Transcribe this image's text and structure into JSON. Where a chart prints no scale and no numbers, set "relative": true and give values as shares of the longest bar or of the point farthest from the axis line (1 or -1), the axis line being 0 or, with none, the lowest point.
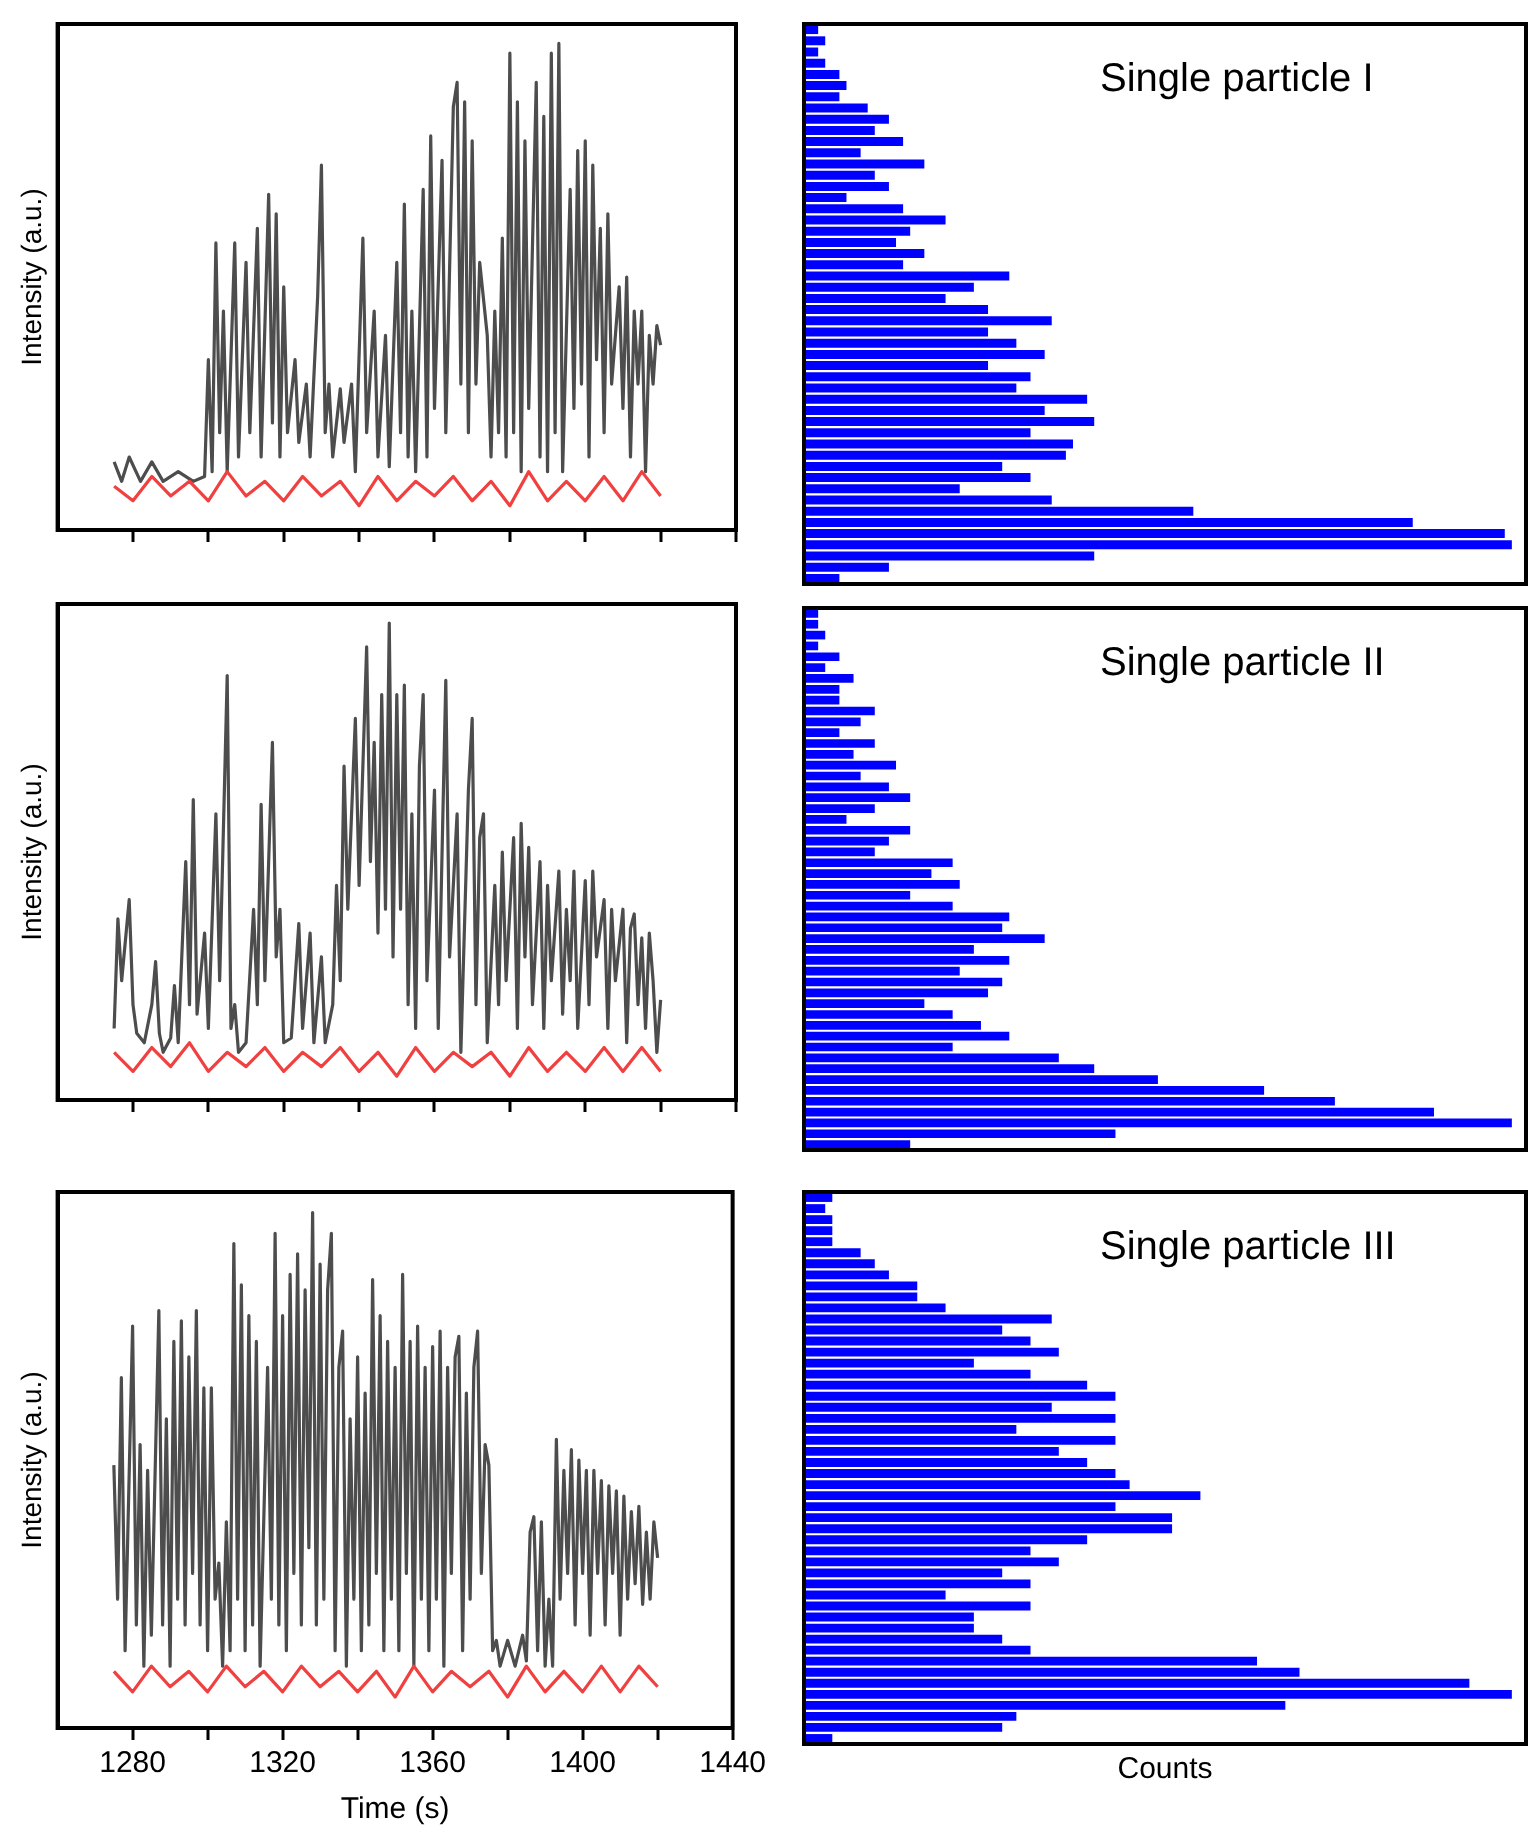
{
  "chart_data": [
    {
      "type": "line",
      "ylabel": "Intensity (a.u.)",
      "relative": true,
      "tick_labels": false,
      "xlim": [
        1260,
        1440
      ],
      "xticks": [
        {
          "value": 1280,
          "label": null
        },
        {
          "value": 1300,
          "label": null
        },
        {
          "value": 1320,
          "label": null
        },
        {
          "value": 1340,
          "label": null
        },
        {
          "value": 1360,
          "label": null
        },
        {
          "value": 1380,
          "label": null
        },
        {
          "value": 1400,
          "label": null
        },
        {
          "value": 1420,
          "label": null
        },
        {
          "value": 1440,
          "label": null
        }
      ],
      "series": [
        {
          "color": "#4d4d4d",
          "x": [
            1275,
            1277,
            1279,
            1282,
            1285,
            1288,
            1292,
            1296,
            1299,
            1300,
            1301,
            1302,
            1303,
            1304,
            1305,
            1307,
            1308,
            1310,
            1311,
            1313,
            1314,
            1316,
            1317,
            1318,
            1319,
            1320,
            1321,
            1323,
            1324,
            1326,
            1327,
            1329,
            1330,
            1331,
            1332,
            1333,
            1335,
            1336,
            1338,
            1339,
            1341,
            1342,
            1344,
            1345,
            1347,
            1348,
            1350,
            1351,
            1352,
            1353,
            1354,
            1355,
            1357,
            1358,
            1359,
            1360,
            1362,
            1363,
            1365,
            1366,
            1367,
            1368,
            1369,
            1370,
            1371,
            1372,
            1374,
            1375,
            1376,
            1377,
            1378,
            1379,
            1380,
            1381,
            1382,
            1383,
            1384,
            1385,
            1387,
            1388,
            1389,
            1390,
            1391,
            1392,
            1393,
            1394,
            1396,
            1397,
            1398,
            1399,
            1400,
            1401,
            1402,
            1403,
            1404,
            1405,
            1406,
            1407,
            1409,
            1410,
            1411,
            1412,
            1413,
            1414,
            1415,
            1416,
            1417,
            1418,
            1419,
            1420
          ],
          "values": [
            0.14,
            0.1,
            0.15,
            0.1,
            0.14,
            0.1,
            0.12,
            0.1,
            0.11,
            0.35,
            0.12,
            0.59,
            0.2,
            0.45,
            0.12,
            0.59,
            0.15,
            0.55,
            0.2,
            0.62,
            0.15,
            0.69,
            0.22,
            0.65,
            0.15,
            0.5,
            0.2,
            0.35,
            0.18,
            0.3,
            0.15,
            0.48,
            0.75,
            0.2,
            0.3,
            0.15,
            0.29,
            0.18,
            0.3,
            0.12,
            0.6,
            0.2,
            0.45,
            0.15,
            0.4,
            0.13,
            0.55,
            0.2,
            0.67,
            0.15,
            0.45,
            0.12,
            0.7,
            0.15,
            0.81,
            0.25,
            0.76,
            0.2,
            0.87,
            0.92,
            0.3,
            0.88,
            0.2,
            0.8,
            0.3,
            0.55,
            0.4,
            0.15,
            0.45,
            0.2,
            0.6,
            0.15,
            0.98,
            0.2,
            0.88,
            0.12,
            0.8,
            0.25,
            0.92,
            0.15,
            0.85,
            0.12,
            0.98,
            0.2,
            1,
            0.12,
            0.7,
            0.25,
            0.78,
            0.3,
            0.8,
            0.15,
            0.75,
            0.35,
            0.62,
            0.2,
            0.65,
            0.3,
            0.5,
            0.25,
            0.52,
            0.15,
            0.45,
            0.3,
            0.45,
            0.12,
            0.4,
            0.3,
            0.42,
            0.38
          ]
        },
        {
          "color": "#f04040",
          "x": [
            1275,
            1280,
            1285,
            1290,
            1295,
            1300,
            1305,
            1310,
            1315,
            1320,
            1325,
            1330,
            1335,
            1340,
            1345,
            1350,
            1355,
            1360,
            1365,
            1370,
            1375,
            1380,
            1385,
            1390,
            1395,
            1400,
            1405,
            1410,
            1415,
            1420
          ],
          "values": [
            0.09,
            0.06,
            0.11,
            0.07,
            0.1,
            0.06,
            0.12,
            0.07,
            0.1,
            0.06,
            0.11,
            0.07,
            0.1,
            0.05,
            0.11,
            0.06,
            0.1,
            0.07,
            0.11,
            0.06,
            0.1,
            0.05,
            0.12,
            0.06,
            0.1,
            0.06,
            0.11,
            0.06,
            0.12,
            0.07
          ]
        }
      ]
    },
    {
      "type": "bar",
      "orientation": "horizontal",
      "relative": true,
      "title": "Single particle I",
      "color": "#0000ff",
      "categories": [
        null,
        null,
        null,
        null,
        null,
        null,
        null,
        null,
        null,
        null,
        null,
        null,
        null,
        null,
        null,
        null,
        null,
        null,
        null,
        null,
        null,
        null,
        null,
        null,
        null,
        null,
        null,
        null,
        null,
        null,
        null,
        null,
        null,
        null,
        null,
        null,
        null,
        null,
        null,
        null,
        null,
        null,
        null,
        null,
        null,
        null,
        null,
        null,
        null,
        null
      ],
      "values": [
        0.02,
        0.03,
        0.02,
        0.03,
        0.05,
        0.06,
        0.05,
        0.09,
        0.12,
        0.1,
        0.14,
        0.08,
        0.17,
        0.1,
        0.12,
        0.06,
        0.14,
        0.2,
        0.15,
        0.13,
        0.17,
        0.14,
        0.29,
        0.24,
        0.2,
        0.26,
        0.35,
        0.26,
        0.3,
        0.34,
        0.26,
        0.32,
        0.3,
        0.4,
        0.34,
        0.41,
        0.32,
        0.38,
        0.37,
        0.28,
        0.32,
        0.22,
        0.35,
        0.55,
        0.86,
        0.99,
        1,
        0.41,
        0.12,
        0.05
      ]
    },
    {
      "type": "line",
      "ylabel": "Intensity (a.u.)",
      "relative": true,
      "tick_labels": false,
      "xlim": [
        1260,
        1440
      ],
      "xticks": [
        {
          "value": 1280,
          "label": null
        },
        {
          "value": 1300,
          "label": null
        },
        {
          "value": 1320,
          "label": null
        },
        {
          "value": 1340,
          "label": null
        },
        {
          "value": 1360,
          "label": null
        },
        {
          "value": 1380,
          "label": null
        },
        {
          "value": 1400,
          "label": null
        },
        {
          "value": 1420,
          "label": null
        },
        {
          "value": 1440,
          "label": null
        }
      ],
      "series": [
        {
          "color": "#4d4d4d",
          "x": [
            1275,
            1276,
            1277,
            1279,
            1280,
            1281,
            1283,
            1285,
            1286,
            1287,
            1288,
            1290,
            1291,
            1292,
            1294,
            1295,
            1296,
            1297,
            1299,
            1300,
            1302,
            1303,
            1305,
            1306,
            1307,
            1308,
            1310,
            1312,
            1313,
            1314,
            1315,
            1317,
            1318,
            1319,
            1320,
            1322,
            1324,
            1325,
            1326,
            1327,
            1328,
            1330,
            1331,
            1333,
            1334,
            1335,
            1336,
            1337,
            1339,
            1340,
            1342,
            1343,
            1344,
            1345,
            1346,
            1347,
            1348,
            1349,
            1350,
            1351,
            1352,
            1353,
            1354,
            1355,
            1356,
            1357,
            1358,
            1360,
            1361,
            1363,
            1364,
            1366,
            1367,
            1369,
            1370,
            1371,
            1372,
            1373,
            1374,
            1376,
            1377,
            1378,
            1379,
            1381,
            1382,
            1383,
            1384,
            1385,
            1386,
            1388,
            1389,
            1390,
            1391,
            1393,
            1394,
            1395,
            1396,
            1397,
            1398,
            1400,
            1401,
            1402,
            1403,
            1405,
            1406,
            1407,
            1408,
            1410,
            1411,
            1412,
            1413,
            1414,
            1415,
            1416,
            1417,
            1418,
            1419,
            1420
          ],
          "values": [
            0.15,
            0.38,
            0.25,
            0.42,
            0.2,
            0.14,
            0.12,
            0.2,
            0.29,
            0.14,
            0.1,
            0.13,
            0.24,
            0.12,
            0.5,
            0.2,
            0.63,
            0.18,
            0.35,
            0.15,
            0.6,
            0.25,
            0.89,
            0.15,
            0.2,
            0.1,
            0.12,
            0.4,
            0.2,
            0.62,
            0.25,
            0.75,
            0.3,
            0.4,
            0.12,
            0.13,
            0.37,
            0.15,
            0.25,
            0.35,
            0.12,
            0.3,
            0.12,
            0.2,
            0.45,
            0.25,
            0.7,
            0.4,
            0.8,
            0.45,
            0.95,
            0.5,
            0.75,
            0.35,
            0.85,
            0.4,
            1,
            0.3,
            0.85,
            0.4,
            0.87,
            0.2,
            0.6,
            0.15,
            0.7,
            0.85,
            0.25,
            0.65,
            0.15,
            0.88,
            0.3,
            0.6,
            0.1,
            0.65,
            0.8,
            0.2,
            0.55,
            0.6,
            0.12,
            0.45,
            0.2,
            0.52,
            0.25,
            0.55,
            0.15,
            0.58,
            0.3,
            0.53,
            0.2,
            0.5,
            0.15,
            0.45,
            0.25,
            0.48,
            0.18,
            0.4,
            0.25,
            0.48,
            0.15,
            0.46,
            0.2,
            0.48,
            0.3,
            0.42,
            0.15,
            0.4,
            0.25,
            0.4,
            0.12,
            0.36,
            0.39,
            0.2,
            0.34,
            0.15,
            0.35,
            0.25,
            0.1,
            0.21
          ]
        },
        {
          "color": "#f04040",
          "x": [
            1275,
            1280,
            1285,
            1290,
            1295,
            1300,
            1305,
            1310,
            1315,
            1320,
            1325,
            1330,
            1335,
            1340,
            1345,
            1350,
            1355,
            1360,
            1365,
            1370,
            1375,
            1380,
            1385,
            1390,
            1395,
            1400,
            1405,
            1410,
            1415,
            1420
          ],
          "values": [
            0.1,
            0.06,
            0.11,
            0.07,
            0.12,
            0.06,
            0.1,
            0.07,
            0.11,
            0.06,
            0.1,
            0.07,
            0.11,
            0.06,
            0.1,
            0.05,
            0.11,
            0.06,
            0.1,
            0.07,
            0.1,
            0.05,
            0.11,
            0.06,
            0.1,
            0.06,
            0.11,
            0.06,
            0.11,
            0.06
          ]
        }
      ]
    },
    {
      "type": "bar",
      "orientation": "horizontal",
      "relative": true,
      "title": "Single particle II",
      "color": "#0000ff",
      "categories": [
        null,
        null,
        null,
        null,
        null,
        null,
        null,
        null,
        null,
        null,
        null,
        null,
        null,
        null,
        null,
        null,
        null,
        null,
        null,
        null,
        null,
        null,
        null,
        null,
        null,
        null,
        null,
        null,
        null,
        null,
        null,
        null,
        null,
        null,
        null,
        null,
        null,
        null,
        null,
        null,
        null,
        null,
        null,
        null,
        null,
        null,
        null,
        null,
        null,
        null
      ],
      "values": [
        0.02,
        0.02,
        0.03,
        0.02,
        0.05,
        0.03,
        0.07,
        0.05,
        0.05,
        0.1,
        0.08,
        0.05,
        0.1,
        0.07,
        0.13,
        0.08,
        0.12,
        0.15,
        0.1,
        0.06,
        0.15,
        0.12,
        0.1,
        0.21,
        0.18,
        0.22,
        0.15,
        0.21,
        0.29,
        0.28,
        0.34,
        0.24,
        0.29,
        0.22,
        0.28,
        0.26,
        0.17,
        0.21,
        0.25,
        0.29,
        0.21,
        0.36,
        0.41,
        0.5,
        0.65,
        0.75,
        0.89,
        1,
        0.44,
        0.15
      ]
    },
    {
      "type": "line",
      "ylabel": "Intensity (a.u.)",
      "xlabel": "Time (s)",
      "relative": true,
      "tick_labels": "x",
      "xlim": [
        1260,
        1440
      ],
      "xticks": [
        1280,
        {
          "value": 1300,
          "label": null
        },
        1320,
        {
          "value": 1340,
          "label": null
        },
        1360,
        {
          "value": 1380,
          "label": null
        },
        1400,
        {
          "value": 1420,
          "label": null
        },
        1440
      ],
      "series": [
        {
          "color": "#4d4d4d",
          "x": [
            1275,
            1276,
            1277,
            1278,
            1280,
            1281,
            1282,
            1283,
            1284,
            1285,
            1287,
            1288,
            1289,
            1290,
            1291,
            1292,
            1293,
            1294,
            1295,
            1296,
            1297,
            1298,
            1299,
            1300,
            1301,
            1302,
            1303,
            1304,
            1305,
            1306,
            1307,
            1308,
            1309,
            1310,
            1311,
            1312,
            1313,
            1314,
            1316,
            1317,
            1318,
            1319,
            1320,
            1321,
            1322,
            1323,
            1324,
            1325,
            1326,
            1327,
            1328,
            1329,
            1330,
            1331,
            1332,
            1333,
            1334,
            1335,
            1336,
            1337,
            1338,
            1339,
            1340,
            1341,
            1342,
            1343,
            1344,
            1345,
            1346,
            1347,
            1348,
            1349,
            1350,
            1351,
            1352,
            1353,
            1354,
            1355,
            1356,
            1357,
            1358,
            1359,
            1360,
            1361,
            1362,
            1363,
            1364,
            1365,
            1366,
            1367,
            1368,
            1369,
            1370,
            1371,
            1372,
            1373,
            1374,
            1375,
            1376,
            1377,
            1378,
            1380,
            1382,
            1384,
            1385,
            1386,
            1387,
            1388,
            1389,
            1390,
            1391,
            1392,
            1393,
            1394,
            1395,
            1396,
            1397,
            1398,
            1399,
            1400,
            1401,
            1402,
            1403,
            1404,
            1405,
            1406,
            1407,
            1408,
            1409,
            1410,
            1411,
            1412,
            1413,
            1414,
            1415,
            1416,
            1417,
            1418,
            1419,
            1420
          ],
          "values": [
            0.51,
            0.25,
            0.68,
            0.15,
            0.78,
            0.2,
            0.55,
            0.12,
            0.5,
            0.18,
            0.81,
            0.2,
            0.6,
            0.12,
            0.75,
            0.25,
            0.79,
            0.2,
            0.72,
            0.3,
            0.81,
            0.2,
            0.66,
            0.15,
            0.66,
            0.25,
            0.32,
            0.12,
            0.4,
            0.15,
            0.94,
            0.25,
            0.86,
            0.15,
            0.8,
            0.2,
            0.75,
            0.12,
            0.7,
            0.25,
            0.96,
            0.2,
            0.8,
            0.15,
            0.88,
            0.3,
            0.92,
            0.2,
            0.85,
            0.35,
            1,
            0.2,
            0.9,
            0.25,
            0.85,
            0.96,
            0.15,
            0.7,
            0.77,
            0.12,
            0.6,
            0.25,
            0.72,
            0.15,
            0.65,
            0.2,
            0.87,
            0.3,
            0.8,
            0.15,
            0.75,
            0.25,
            0.7,
            0.15,
            0.88,
            0.3,
            0.75,
            0.12,
            0.78,
            0.25,
            0.7,
            0.15,
            0.74,
            0.25,
            0.77,
            0.12,
            0.7,
            0.3,
            0.72,
            0.76,
            0.15,
            0.65,
            0.25,
            0.7,
            0.77,
            0.3,
            0.55,
            0.51,
            0.15,
            0.17,
            0.12,
            0.17,
            0.12,
            0.18,
            0.13,
            0.38,
            0.41,
            0.15,
            0.4,
            0.12,
            0.25,
            0.12,
            0.56,
            0.25,
            0.5,
            0.3,
            0.54,
            0.2,
            0.52,
            0.3,
            0.5,
            0.18,
            0.5,
            0.3,
            0.48,
            0.2,
            0.47,
            0.3,
            0.46,
            0.18,
            0.45,
            0.25,
            0.42,
            0.28,
            0.43,
            0.24,
            0.38,
            0.25,
            0.4,
            0.33
          ]
        },
        {
          "color": "#f04040",
          "x": [
            1275,
            1280,
            1285,
            1290,
            1295,
            1300,
            1305,
            1310,
            1315,
            1320,
            1325,
            1330,
            1335,
            1340,
            1345,
            1350,
            1355,
            1360,
            1365,
            1370,
            1375,
            1380,
            1385,
            1390,
            1395,
            1400,
            1405,
            1410,
            1415,
            1420
          ],
          "values": [
            0.11,
            0.07,
            0.12,
            0.08,
            0.11,
            0.07,
            0.12,
            0.08,
            0.11,
            0.07,
            0.12,
            0.08,
            0.11,
            0.07,
            0.11,
            0.06,
            0.12,
            0.07,
            0.11,
            0.08,
            0.11,
            0.06,
            0.12,
            0.07,
            0.11,
            0.07,
            0.12,
            0.07,
            0.12,
            0.08
          ]
        }
      ]
    },
    {
      "type": "bar",
      "orientation": "horizontal",
      "relative": true,
      "title": "Single particle III",
      "xlabel": "Counts",
      "color": "#0000ff",
      "categories": [
        null,
        null,
        null,
        null,
        null,
        null,
        null,
        null,
        null,
        null,
        null,
        null,
        null,
        null,
        null,
        null,
        null,
        null,
        null,
        null,
        null,
        null,
        null,
        null,
        null,
        null,
        null,
        null,
        null,
        null,
        null,
        null,
        null,
        null,
        null,
        null,
        null,
        null,
        null,
        null,
        null,
        null,
        null,
        null,
        null,
        null,
        null,
        null,
        null,
        null
      ],
      "values": [
        0.04,
        0.03,
        0.04,
        0.04,
        0.04,
        0.08,
        0.1,
        0.12,
        0.16,
        0.16,
        0.2,
        0.35,
        0.28,
        0.32,
        0.36,
        0.24,
        0.32,
        0.4,
        0.44,
        0.35,
        0.44,
        0.3,
        0.44,
        0.36,
        0.4,
        0.44,
        0.46,
        0.56,
        0.44,
        0.52,
        0.52,
        0.4,
        0.32,
        0.36,
        0.28,
        0.32,
        0.2,
        0.32,
        0.24,
        0.24,
        0.28,
        0.32,
        0.64,
        0.7,
        0.94,
        1,
        0.68,
        0.3,
        0.28,
        0.04
      ]
    }
  ]
}
